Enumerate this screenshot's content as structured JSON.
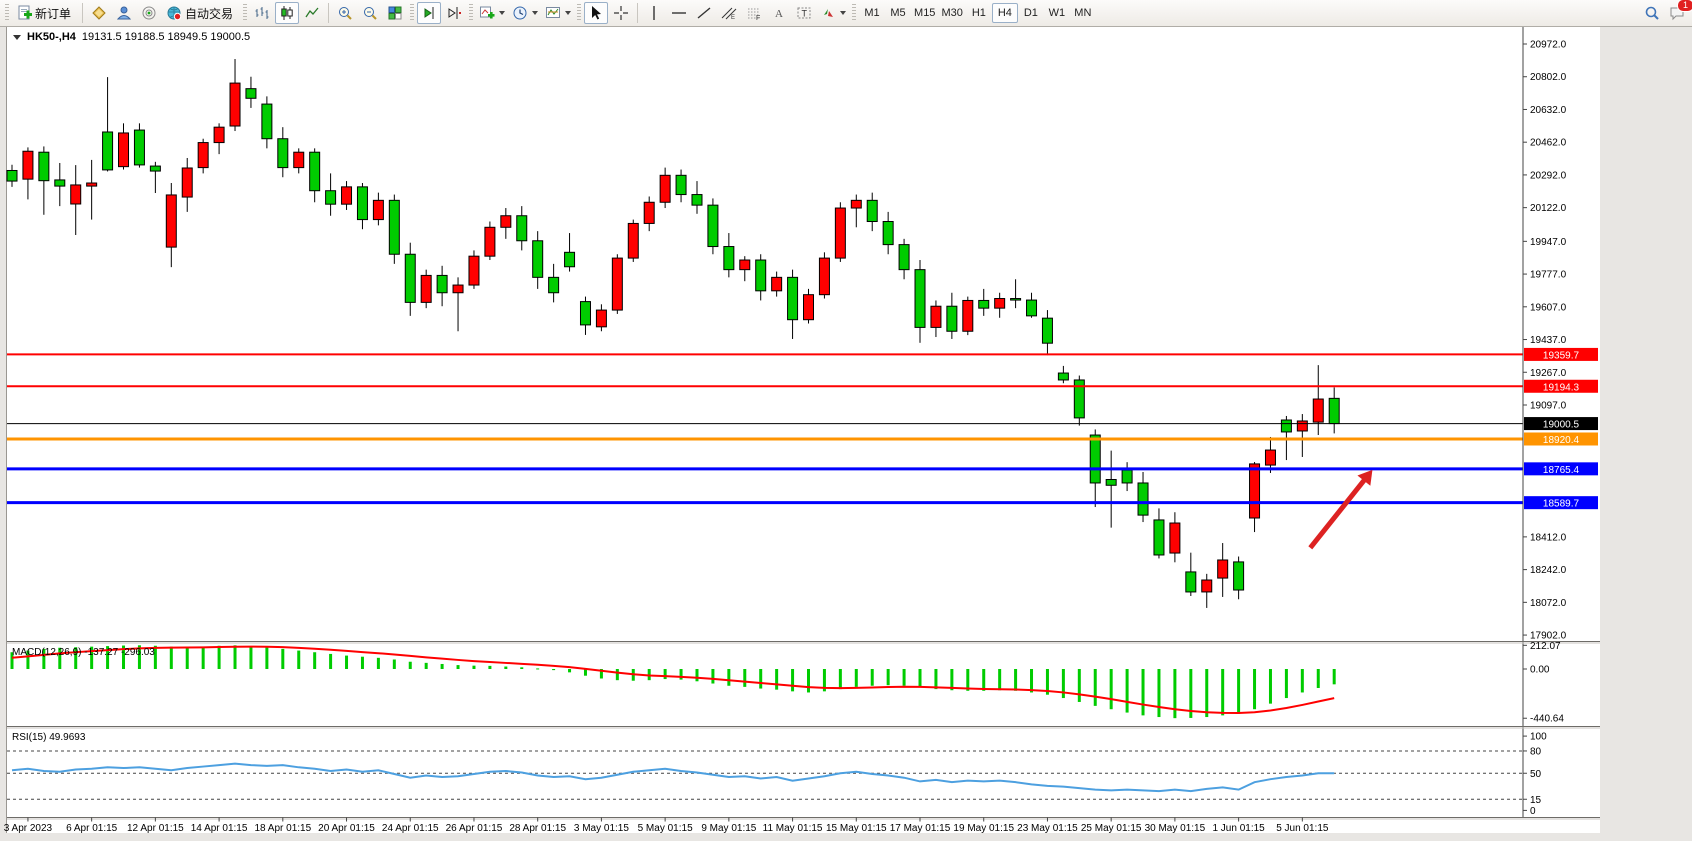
{
  "toolbar": {
    "new_order_label": "新订单",
    "auto_trading_label": "自动交易",
    "timeframes": [
      "M1",
      "M5",
      "M15",
      "M30",
      "H1",
      "H4",
      "D1",
      "W1",
      "MN"
    ],
    "active_timeframe": "H4",
    "notification_count": "1"
  },
  "header": {
    "symbol_period": "HK50-,H4",
    "ohlc_text": "19131.5 19188.5 18949.5 19000.5"
  },
  "chart_data": {
    "type": "candlestick",
    "symbol": "HK50-",
    "timeframe": "H4",
    "title": "HK50-,H4",
    "current_bar": {
      "open": 19131.5,
      "high": 19188.5,
      "low": 18949.5,
      "close": 19000.5
    },
    "up_color": "#ff0000",
    "down_color": "#00cc00",
    "note": "Chinese color convention: red = bullish, green = bearish",
    "ylim": [
      17902.0,
      21055.0
    ],
    "price_axis_ticks": [
      "20972.0",
      "20802.0",
      "20632.0",
      "20462.0",
      "20292.0",
      "20122.0",
      "19947.0",
      "19777.0",
      "19607.0",
      "19437.0",
      "19267.0",
      "19097.0",
      "18412.0",
      "18242.0",
      "18072.0",
      "17902.0"
    ],
    "horizontal_lines": [
      {
        "price": 19359.7,
        "label": "19359.7",
        "color": "#ff0000",
        "thickness": 2
      },
      {
        "price": 19194.3,
        "label": "19194.3",
        "color": "#ff0000",
        "thickness": 2
      },
      {
        "price": 19000.5,
        "label": "19000.5",
        "color": "#000000",
        "thickness": 1
      },
      {
        "price": 18920.4,
        "label": "18920.4",
        "color": "#ff9400",
        "thickness": 3
      },
      {
        "price": 18765.4,
        "label": "18765.4",
        "color": "#0000ff",
        "thickness": 3
      },
      {
        "price": 18589.7,
        "label": "18589.7",
        "color": "#0000ff",
        "thickness": 3
      }
    ],
    "time_labels": [
      "3 Apr 2023",
      "6 Apr 01:15",
      "12 Apr 01:15",
      "14 Apr 01:15",
      "18 Apr 01:15",
      "20 Apr 01:15",
      "24 Apr 01:15",
      "26 Apr 01:15",
      "28 Apr 01:15",
      "3 May 01:15",
      "5 May 01:15",
      "9 May 01:15",
      "11 May 01:15",
      "15 May 01:15",
      "17 May 01:15",
      "19 May 01:15",
      "23 May 01:15",
      "25 May 01:15",
      "30 May 01:15",
      "1 Jun 01:15",
      "5 Jun 01:15"
    ],
    "label_start_bar": 1,
    "label_step": 4,
    "candles_ohlc": [
      [
        20315,
        20345,
        20230,
        20260
      ],
      [
        20270,
        20435,
        20165,
        20415
      ],
      [
        20410,
        20440,
        20085,
        20262
      ],
      [
        20266,
        20354,
        20130,
        20234
      ],
      [
        20141,
        20343,
        19980,
        20240
      ],
      [
        20234,
        20370,
        20060,
        20250
      ],
      [
        20515,
        20800,
        20310,
        20318
      ],
      [
        20335,
        20560,
        20320,
        20510
      ],
      [
        20525,
        20560,
        20330,
        20344
      ],
      [
        20338,
        20360,
        20198,
        20312
      ],
      [
        19917,
        20250,
        19813,
        20188
      ],
      [
        20177,
        20380,
        20100,
        20328
      ],
      [
        20330,
        20480,
        20300,
        20460
      ],
      [
        20460,
        20560,
        20400,
        20540
      ],
      [
        20546,
        20894,
        20520,
        20769
      ],
      [
        20740,
        20802,
        20640,
        20690
      ],
      [
        20660,
        20700,
        20430,
        20480
      ],
      [
        20480,
        20540,
        20280,
        20330
      ],
      [
        20330,
        20430,
        20300,
        20410
      ],
      [
        20410,
        20430,
        20150,
        20210
      ],
      [
        20210,
        20300,
        20080,
        20140
      ],
      [
        20140,
        20260,
        20110,
        20230
      ],
      [
        20230,
        20250,
        20010,
        20060
      ],
      [
        20060,
        20200,
        20030,
        20160
      ],
      [
        20160,
        20190,
        19830,
        19880
      ],
      [
        19880,
        19940,
        19560,
        19630
      ],
      [
        19630,
        19800,
        19600,
        19770
      ],
      [
        19770,
        19820,
        19610,
        19680
      ],
      [
        19680,
        19760,
        19480,
        19720
      ],
      [
        19720,
        19900,
        19700,
        19870
      ],
      [
        19870,
        20050,
        19850,
        20020
      ],
      [
        20020,
        20120,
        19960,
        20080
      ],
      [
        20080,
        20130,
        19900,
        19950
      ],
      [
        19950,
        20000,
        19700,
        19760
      ],
      [
        19760,
        19830,
        19630,
        19680
      ],
      [
        19890,
        19990,
        19790,
        19815
      ],
      [
        19634,
        19660,
        19461,
        19513
      ],
      [
        19503,
        19620,
        19480,
        19590
      ],
      [
        19590,
        19880,
        19570,
        19860
      ],
      [
        19860,
        20060,
        19840,
        20040
      ],
      [
        20040,
        20180,
        20000,
        20150
      ],
      [
        20150,
        20330,
        20120,
        20290
      ],
      [
        20290,
        20320,
        20150,
        20190
      ],
      [
        20190,
        20260,
        20090,
        20135
      ],
      [
        20135,
        20170,
        19880,
        19920
      ],
      [
        19920,
        19990,
        19760,
        19800
      ],
      [
        19800,
        19870,
        19740,
        19850
      ],
      [
        19850,
        19880,
        19640,
        19690
      ],
      [
        19690,
        19790,
        19660,
        19760
      ],
      [
        19760,
        19800,
        19440,
        19540
      ],
      [
        19540,
        19700,
        19520,
        19670
      ],
      [
        19670,
        19890,
        19650,
        19860
      ],
      [
        19860,
        20150,
        19840,
        20120
      ],
      [
        20120,
        20190,
        20020,
        20160
      ],
      [
        20160,
        20200,
        20000,
        20050
      ],
      [
        20050,
        20100,
        19880,
        19930
      ],
      [
        19930,
        19960,
        19750,
        19800
      ],
      [
        19800,
        19850,
        19420,
        19500
      ],
      [
        19500,
        19640,
        19450,
        19610
      ],
      [
        19610,
        19680,
        19440,
        19480
      ],
      [
        19480,
        19660,
        19460,
        19640
      ],
      [
        19640,
        19700,
        19560,
        19600
      ],
      [
        19600,
        19680,
        19550,
        19650
      ],
      [
        19650,
        19750,
        19600,
        19642
      ],
      [
        19642,
        19680,
        19550,
        19560
      ],
      [
        19548,
        19590,
        19356,
        19418
      ],
      [
        19263,
        19300,
        19210,
        19227
      ],
      [
        19227,
        19250,
        18990,
        19030
      ],
      [
        18941,
        18970,
        18567,
        18692
      ],
      [
        18710,
        18860,
        18460,
        18680
      ],
      [
        18759,
        18800,
        18650,
        18692
      ],
      [
        18692,
        18749,
        18489,
        18525
      ],
      [
        18500,
        18560,
        18300,
        18318
      ],
      [
        18328,
        18540,
        18280,
        18484
      ],
      [
        18230,
        18330,
        18105,
        18126
      ],
      [
        18126,
        18220,
        18043,
        18188
      ],
      [
        18198,
        18380,
        18100,
        18292
      ],
      [
        18282,
        18310,
        18088,
        18136
      ],
      [
        18510,
        18801,
        18437,
        18791
      ],
      [
        18785,
        18931,
        18744,
        18863
      ],
      [
        19019,
        19040,
        18811,
        18957
      ],
      [
        18962,
        19050,
        18827,
        19014
      ],
      [
        19008,
        19304,
        18941,
        19128
      ],
      [
        19131.5,
        19188.5,
        18949.5,
        19000.5
      ]
    ],
    "trend_arrow": {
      "from_bar": 81.5,
      "from_price": 18355,
      "to_bar": 85.4,
      "to_price": 18760,
      "color": "#dd2222"
    },
    "macd": {
      "name": "MACD(12,26,9)",
      "label": "MACD(12,26,9) -137.27 -296.03",
      "value_current": -137.27,
      "signal_current": -296.03,
      "axis_ticks": [
        "212.07",
        "0.00",
        "-440.64"
      ],
      "ylim": [
        -440.64,
        212.07
      ],
      "histogram_color": "#00cc00",
      "signal_color": "#ff0000",
      "signal_smoothing": 0.2,
      "values": [
        150,
        165,
        180,
        190,
        195,
        200,
        205,
        210,
        212,
        208,
        200,
        195,
        200,
        208,
        212,
        205,
        195,
        180,
        165,
        150,
        135,
        120,
        110,
        100,
        85,
        65,
        55,
        45,
        35,
        30,
        28,
        22,
        15,
        5,
        -10,
        -30,
        -60,
        -85,
        -100,
        -105,
        -100,
        -90,
        -95,
        -110,
        -130,
        -150,
        -160,
        -175,
        -185,
        -200,
        -210,
        -200,
        -180,
        -160,
        -150,
        -145,
        -150,
        -165,
        -180,
        -190,
        -195,
        -195,
        -190,
        -195,
        -210,
        -230,
        -260,
        -295,
        -330,
        -360,
        -390,
        -415,
        -430,
        -440,
        -438,
        -430,
        -415,
        -400,
        -360,
        -310,
        -260,
        -210,
        -170,
        -137.27
      ]
    },
    "rsi": {
      "name": "RSI(15)",
      "label": "RSI(15) 49.9693",
      "current": 49.9693,
      "levels": [
        80,
        50,
        15
      ],
      "axis_ticks": [
        "100",
        "80",
        "50",
        "15",
        "0"
      ],
      "ylim": [
        0,
        100
      ],
      "line_color": "#4da0e0",
      "values": [
        54,
        56,
        53,
        52,
        55,
        56,
        58,
        57,
        58,
        56,
        54,
        57,
        59,
        61,
        63,
        61,
        60,
        61,
        58,
        56,
        53,
        55,
        52,
        54,
        49,
        44,
        47,
        45,
        46,
        49,
        52,
        53,
        51,
        47,
        45,
        46,
        42,
        44,
        48,
        52,
        54,
        56,
        53,
        51,
        48,
        45,
        46,
        43,
        45,
        40,
        43,
        46,
        50,
        52,
        49,
        47,
        44,
        39,
        41,
        38,
        40,
        39,
        40,
        38,
        35,
        33,
        32,
        30,
        28,
        27,
        28,
        27,
        26,
        28,
        26,
        29,
        31,
        28,
        38,
        42,
        45,
        47,
        50,
        49.97
      ]
    }
  }
}
